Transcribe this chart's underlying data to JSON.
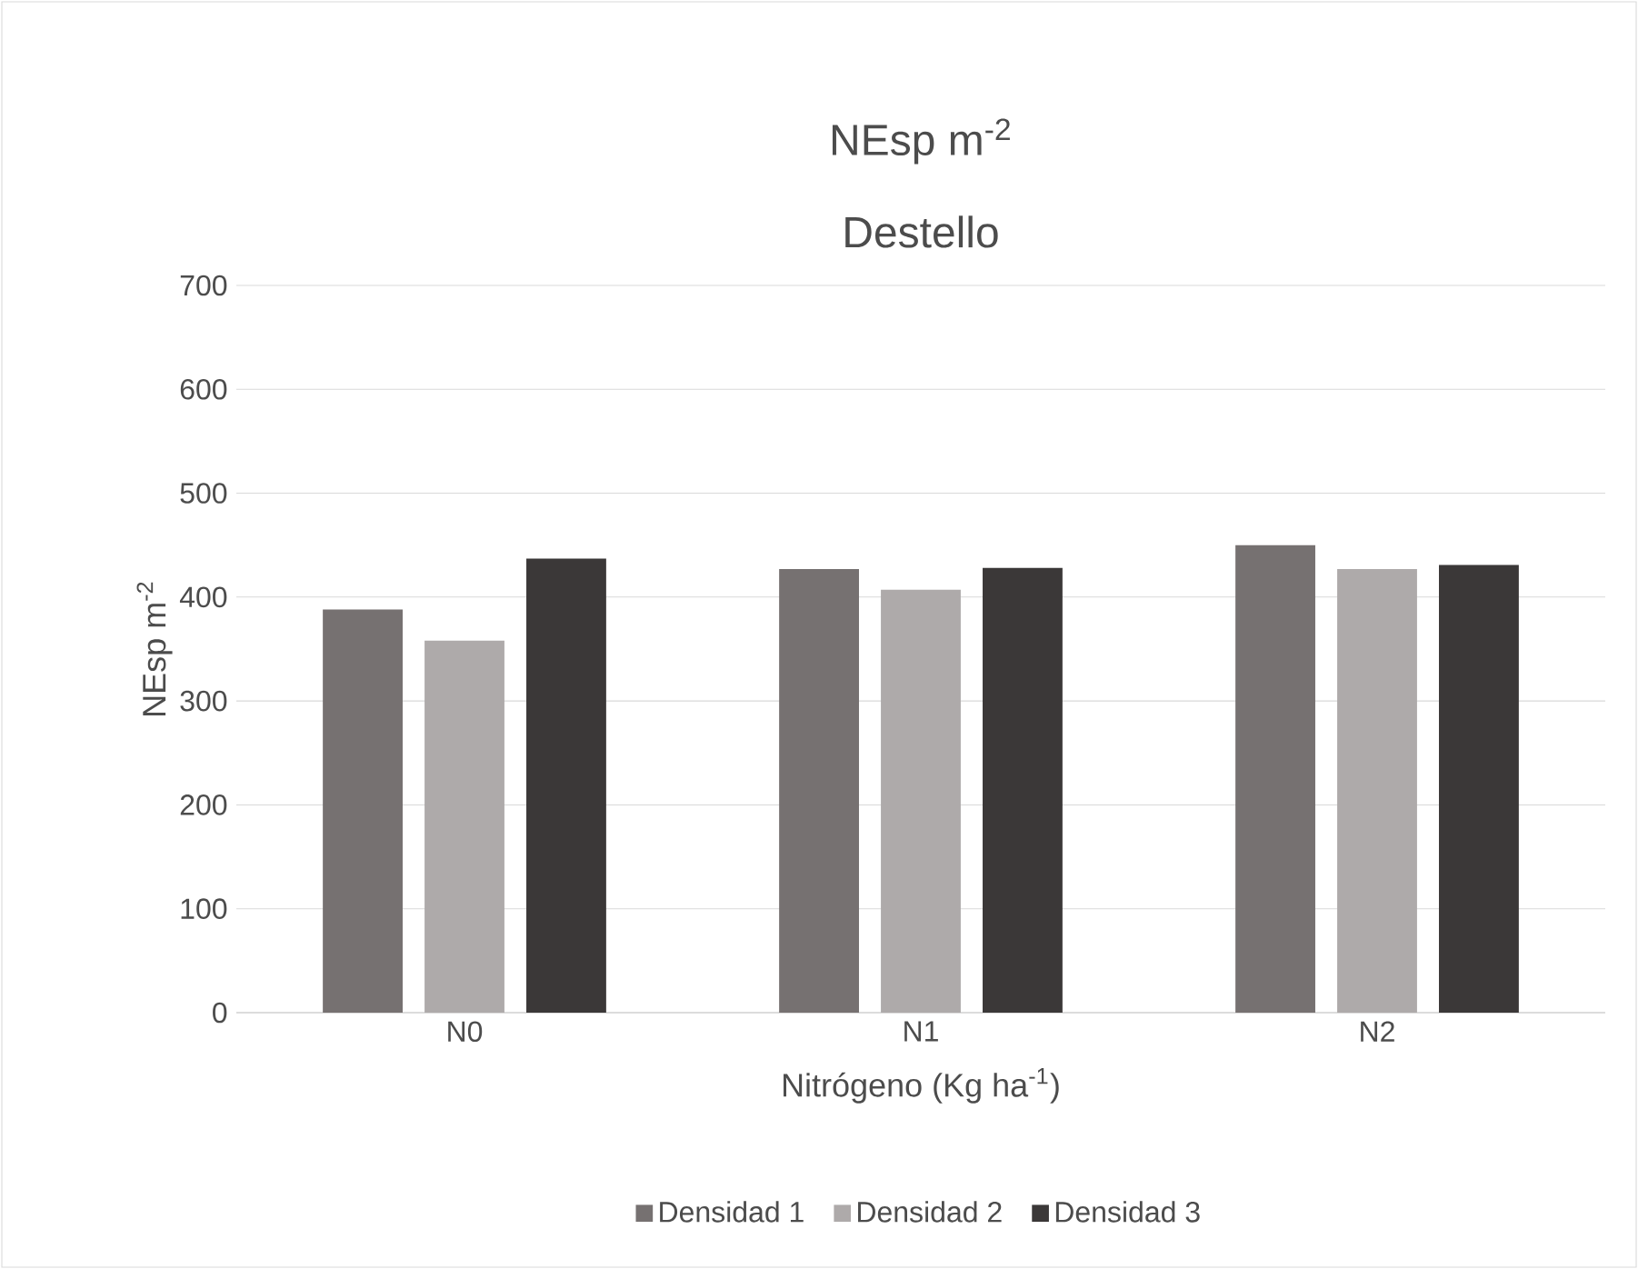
{
  "chart_data": {
    "type": "bar",
    "title": "NEsp m$^{-2}$",
    "subtitle": "Destello",
    "xlabel": "Nitrógeno (Kg ha$^{-1}$)",
    "ylabel": "NEsp  m$^{-2}$",
    "categories": [
      "N0",
      "N1",
      "N2"
    ],
    "series": [
      {
        "name": "Densidad 1",
        "color": "#767171",
        "values": [
          388,
          427,
          450
        ]
      },
      {
        "name": "Densidad 2",
        "color": "#aeaaaa",
        "values": [
          358,
          407,
          427
        ]
      },
      {
        "name": "Densidad 3",
        "color": "#3b3838",
        "values": [
          437,
          428,
          431
        ]
      }
    ],
    "ylim": [
      0,
      700
    ],
    "yticks": [
      0,
      100,
      200,
      300,
      400,
      500,
      600,
      700
    ],
    "grid": "y",
    "legend": "bottom"
  }
}
